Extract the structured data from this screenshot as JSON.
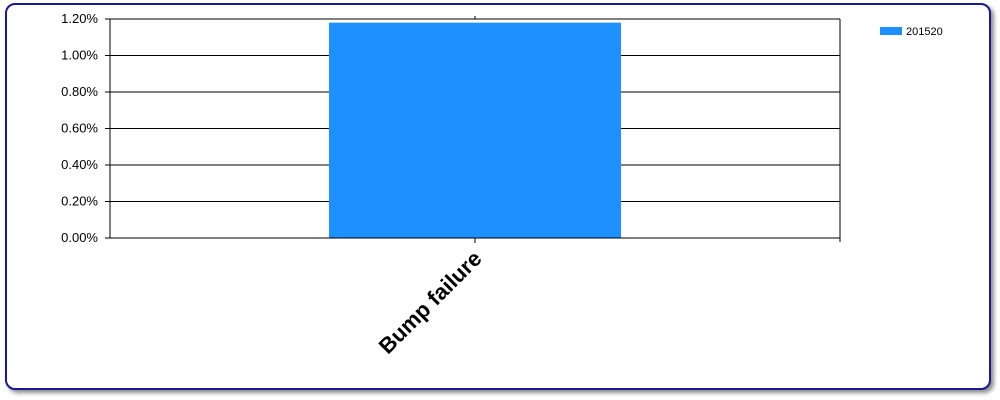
{
  "chart_data": {
    "type": "bar",
    "categories": [
      "Bump failure"
    ],
    "series": [
      {
        "name": "201520",
        "values": [
          1.18
        ],
        "color": "#1e90ff"
      }
    ],
    "y_unit": "%",
    "ylim": [
      0,
      1.2
    ],
    "y_ticks": [
      0,
      0.2,
      0.4,
      0.6,
      0.8,
      1.0,
      1.2
    ],
    "y_tick_labels": [
      "0.00%",
      "0.20%",
      "0.40%",
      "0.60%",
      "0.80%",
      "1.00%",
      "1.20%"
    ],
    "grid": true,
    "legend_position": "top-right"
  }
}
